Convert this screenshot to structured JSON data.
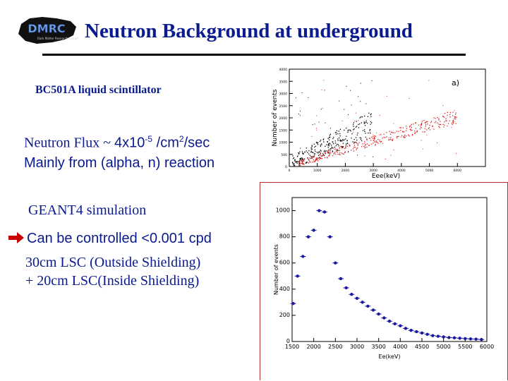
{
  "header": {
    "logo_text": "DMRC",
    "logo_subtitle": "Dark Matter Research Center",
    "title": "Neutron Background at underground"
  },
  "content": {
    "subtitle": "BC501A liquid scintillator",
    "flux_prefix": "Neutron Flux ~ ",
    "flux_value": "4x10",
    "flux_exponent": "-5",
    "flux_unit": " /cm",
    "flux_unit_exp": "2",
    "flux_unit_suffix": "/sec",
    "flux_line2": "Mainly from (alpha, n) reaction",
    "geant": "GEANT4 simulation",
    "controlled": "Can be controlled <0.001 cpd",
    "shield_line1": "30cm LSC (Outside Shielding)",
    "shield_line2": "+ 20cm LSC(Inside Shielding)"
  },
  "colors": {
    "title": "#0a1a8f",
    "arrow": "#cc0000",
    "series_red": "#e02020",
    "series_black": "#000000",
    "series_blue": "#1a1aa0"
  },
  "chart_data": [
    {
      "type": "scatter",
      "panel_label": "a)",
      "xlabel": "Eee(keV)",
      "ylabel": "Number of events",
      "xlim": [
        0,
        7000
      ],
      "ylim": [
        0,
        4000
      ],
      "x_ticks": [
        "0",
        "1000",
        "2000",
        "3000",
        "4000",
        "5000",
        "6000"
      ],
      "y_ticks": [
        "0",
        "500",
        "1000",
        "1500",
        "2000",
        "2500",
        "3000",
        "3500",
        "4000"
      ],
      "series": [
        {
          "color": "#000000",
          "band_x": [
            100,
            3000
          ],
          "band_y_start": 200,
          "band_y_end": 1800
        },
        {
          "color": "#e02020",
          "band_x": [
            300,
            6000
          ],
          "band_y_start": 150,
          "band_y_end": 2100
        }
      ]
    },
    {
      "type": "scatter",
      "xlabel": "Ee(keV)",
      "ylabel": "Number of events",
      "xlim": [
        1500,
        6000
      ],
      "ylim": [
        0,
        1100
      ],
      "x_ticks": [
        "1500",
        "2000",
        "2500",
        "3000",
        "3500",
        "4000",
        "4500",
        "5000",
        "5500",
        "6000"
      ],
      "y_ticks": [
        "0",
        "200",
        "400",
        "600",
        "800",
        "1000"
      ],
      "series": [
        {
          "color": "#1a1aa0",
          "x": [
            1525,
            1625,
            1750,
            1875,
            2000,
            2125,
            2250,
            2375,
            2500,
            2625,
            2750,
            2875,
            3000,
            3125,
            3250,
            3375,
            3500,
            3625,
            3750,
            3875,
            4000,
            4125,
            4250,
            4375,
            4500,
            4625,
            4750,
            4875,
            5000,
            5125,
            5250,
            5375,
            5500,
            5625,
            5750,
            5875
          ],
          "y": [
            290,
            500,
            650,
            800,
            850,
            1000,
            990,
            800,
            600,
            480,
            410,
            360,
            330,
            300,
            270,
            240,
            210,
            180,
            155,
            135,
            120,
            100,
            85,
            75,
            65,
            55,
            45,
            40,
            35,
            30,
            28,
            25,
            22,
            20,
            18,
            15
          ]
        }
      ]
    }
  ]
}
